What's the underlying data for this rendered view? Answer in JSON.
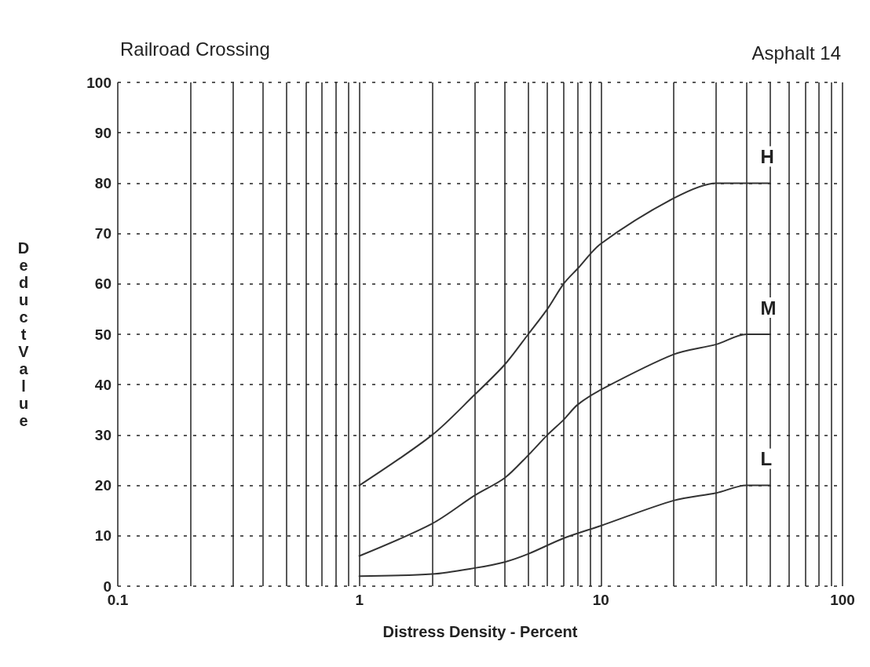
{
  "chart_data": {
    "type": "line",
    "title": "Railroad Crossing",
    "subtitle": "Asphalt 14",
    "xlabel": "Distress Density - Percent",
    "ylabel": "Deduct Value",
    "log": "x",
    "xlim": [
      0.1,
      100
    ],
    "ylim": [
      0,
      100
    ],
    "xticks": [
      0.1,
      {
        "value": 0.2,
        "label": null
      },
      {
        "value": 0.3,
        "label": null
      },
      {
        "value": 0.4,
        "label": null
      },
      {
        "value": 0.5,
        "label": null
      },
      {
        "value": 0.6,
        "label": null
      },
      {
        "value": 0.7,
        "label": null
      },
      {
        "value": 0.8,
        "label": null
      },
      {
        "value": 0.9,
        "label": null
      },
      1,
      {
        "value": 2,
        "label": null
      },
      {
        "value": 3,
        "label": null
      },
      {
        "value": 4,
        "label": null
      },
      {
        "value": 5,
        "label": null
      },
      {
        "value": 6,
        "label": null
      },
      {
        "value": 7,
        "label": null
      },
      {
        "value": 8,
        "label": null
      },
      {
        "value": 9,
        "label": null
      },
      10,
      {
        "value": 20,
        "label": null
      },
      {
        "value": 30,
        "label": null
      },
      {
        "value": 40,
        "label": null
      },
      {
        "value": 50,
        "label": null
      },
      {
        "value": 60,
        "label": null
      },
      {
        "value": 70,
        "label": null
      },
      {
        "value": 80,
        "label": null
      },
      {
        "value": 90,
        "label": null
      },
      100
    ],
    "yticks": [
      0,
      10,
      20,
      30,
      40,
      50,
      60,
      70,
      80,
      90,
      100
    ],
    "grid": true,
    "legend": false,
    "marker": "none",
    "line_style": "solid",
    "series": [
      {
        "name": "H",
        "color": "#333333",
        "x": [
          1,
          2,
          3,
          4,
          5,
          6,
          7,
          8,
          10,
          20,
          30,
          50
        ],
        "values": [
          20,
          30,
          38,
          44,
          50,
          55,
          60,
          63,
          68,
          77,
          80,
          80
        ]
      },
      {
        "name": "M",
        "color": "#333333",
        "x": [
          1,
          2,
          3,
          4,
          5,
          6,
          7,
          8,
          10,
          20,
          30,
          40,
          50
        ],
        "values": [
          6,
          12.4,
          18,
          21.5,
          26,
          30,
          33,
          36,
          39,
          46,
          48,
          50,
          50
        ]
      },
      {
        "name": "L",
        "color": "#333333",
        "x": [
          1,
          2,
          3,
          4,
          5,
          7,
          10,
          20,
          30,
          40,
          50
        ],
        "values": [
          2,
          2.4,
          3.6,
          4.8,
          6.4,
          9.5,
          12,
          17,
          18.5,
          20,
          20
        ]
      }
    ]
  }
}
